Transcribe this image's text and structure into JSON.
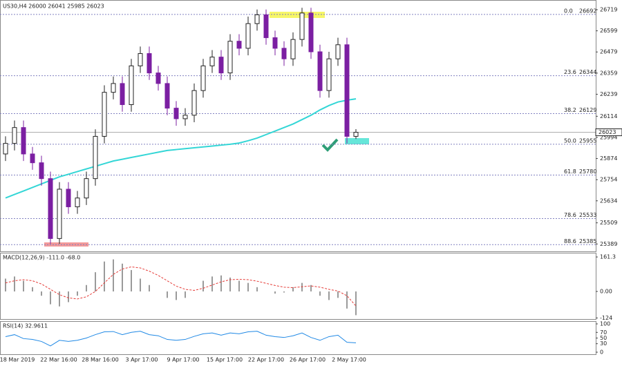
{
  "chart_data": [
    {
      "type": "candlestick",
      "title": "US30,H4  26000 26041 25985 26023",
      "open": [
        25900,
        25960,
        26050,
        25900,
        25850,
        25760,
        25420,
        25700,
        25600,
        25650,
        25760,
        26000,
        26250,
        26300,
        26180,
        26400,
        26470,
        26360,
        26300,
        26160,
        26100,
        26120,
        26260,
        26400,
        26450,
        26360,
        26540,
        26500,
        26640,
        26690,
        26560,
        26500,
        26440,
        26550,
        26700,
        26480,
        26260,
        26440,
        26520,
        26000
      ],
      "high": [
        26000,
        26090,
        26090,
        25940,
        25890,
        25800,
        25740,
        25740,
        25690,
        25800,
        26040,
        26290,
        26340,
        26340,
        26440,
        26510,
        26510,
        26400,
        26340,
        26200,
        26160,
        26300,
        26440,
        26490,
        26490,
        26580,
        26580,
        26680,
        26720,
        26720,
        26600,
        26540,
        26590,
        26730,
        26730,
        26520,
        26480,
        26560,
        26560,
        26041
      ],
      "low": [
        25860,
        25920,
        25860,
        25810,
        25720,
        25389,
        25390,
        25560,
        25560,
        25610,
        25720,
        25960,
        26210,
        26140,
        26140,
        26360,
        26320,
        26260,
        26120,
        26060,
        26060,
        26080,
        26220,
        26360,
        26320,
        26320,
        26460,
        26460,
        26600,
        26520,
        26460,
        26400,
        26400,
        26510,
        26440,
        26220,
        26220,
        26400,
        25960,
        25985
      ],
      "close": [
        25960,
        26050,
        25900,
        25850,
        25760,
        25420,
        25700,
        25600,
        25650,
        25760,
        26000,
        26250,
        26300,
        26180,
        26400,
        26470,
        26360,
        26300,
        26160,
        26100,
        26120,
        26260,
        26400,
        26450,
        26360,
        26540,
        26500,
        26640,
        26690,
        26560,
        26500,
        26440,
        26550,
        26700,
        26480,
        26260,
        26440,
        26520,
        26000,
        26023
      ],
      "up_color": "#222222",
      "down_color": "#7b1fa2",
      "ma": {
        "color": "#33d6d6",
        "values": [
          25650,
          25670,
          25690,
          25710,
          25730,
          25750,
          25770,
          25785,
          25800,
          25815,
          25830,
          25845,
          25860,
          25870,
          25880,
          25890,
          25900,
          25910,
          25920,
          25925,
          25930,
          25935,
          25940,
          25945,
          25950,
          25955,
          25962,
          25975,
          25990,
          26010,
          26030,
          26050,
          26070,
          26095,
          26120,
          26150,
          26175,
          26195,
          26205,
          26213
        ]
      },
      "fib_levels": [
        {
          "level": "0.0",
          "price": 26692
        },
        {
          "level": "23.6",
          "price": 26344
        },
        {
          "level": "38.2",
          "price": 26129
        },
        {
          "level": "50.0",
          "price": 25955
        },
        {
          "level": "61.8",
          "price": 25780
        },
        {
          "level": "78.6",
          "price": 25533
        },
        {
          "level": "88.6",
          "price": 25385
        }
      ],
      "last_price": 26023,
      "ylim": [
        25347,
        26774
      ],
      "yticks": [
        26719,
        26599,
        26479,
        26359,
        26239,
        26114,
        25994,
        25874,
        25754,
        25634,
        25509,
        25389
      ],
      "date_labels": [
        "18 Mar 2019",
        "22 Mar 16:00",
        "28 Mar 16:00",
        "3 Apr 17:00",
        "9 Apr 17:00",
        "15 Apr 17:00",
        "22 Apr 17:00",
        "26 Apr 17:00",
        "2 May 17:00"
      ]
    },
    {
      "type": "macd",
      "title": "MACD(12,26,9) -111.0 -68.0",
      "histogram": [
        60,
        70,
        50,
        20,
        -20,
        -60,
        -70,
        -50,
        -20,
        30,
        90,
        140,
        150,
        130,
        100,
        60,
        30,
        0,
        -30,
        -40,
        -30,
        0,
        50,
        70,
        75,
        65,
        50,
        40,
        20,
        0,
        -10,
        -5,
        20,
        40,
        30,
        -20,
        -40,
        -30,
        -80,
        -111
      ],
      "signal": [
        40,
        50,
        55,
        50,
        35,
        10,
        -15,
        -30,
        -35,
        -25,
        0,
        40,
        80,
        105,
        115,
        110,
        95,
        75,
        50,
        25,
        10,
        5,
        15,
        30,
        45,
        55,
        57,
        55,
        48,
        38,
        28,
        20,
        18,
        22,
        26,
        20,
        10,
        2,
        -20,
        -68
      ],
      "hist_color": "#9a9a9a",
      "signal_color": "#e53935",
      "ylim": [
        -129,
        181
      ],
      "yticks": [
        161.3,
        {
          "value": 0,
          "label": "0.00"
        },
        -124
      ]
    },
    {
      "type": "rsi",
      "title": "RSI(14) 32.9611",
      "values": [
        55,
        62,
        48,
        45,
        38,
        22,
        42,
        38,
        42,
        50,
        62,
        72,
        73,
        62,
        70,
        74,
        62,
        58,
        45,
        42,
        45,
        56,
        65,
        68,
        60,
        68,
        65,
        72,
        74,
        60,
        55,
        52,
        58,
        68,
        52,
        42,
        55,
        60,
        35,
        32.9611
      ],
      "color": "#1e88e5",
      "ylim": [
        0,
        100
      ],
      "yticks": [
        100,
        70,
        50,
        30,
        0
      ]
    }
  ]
}
